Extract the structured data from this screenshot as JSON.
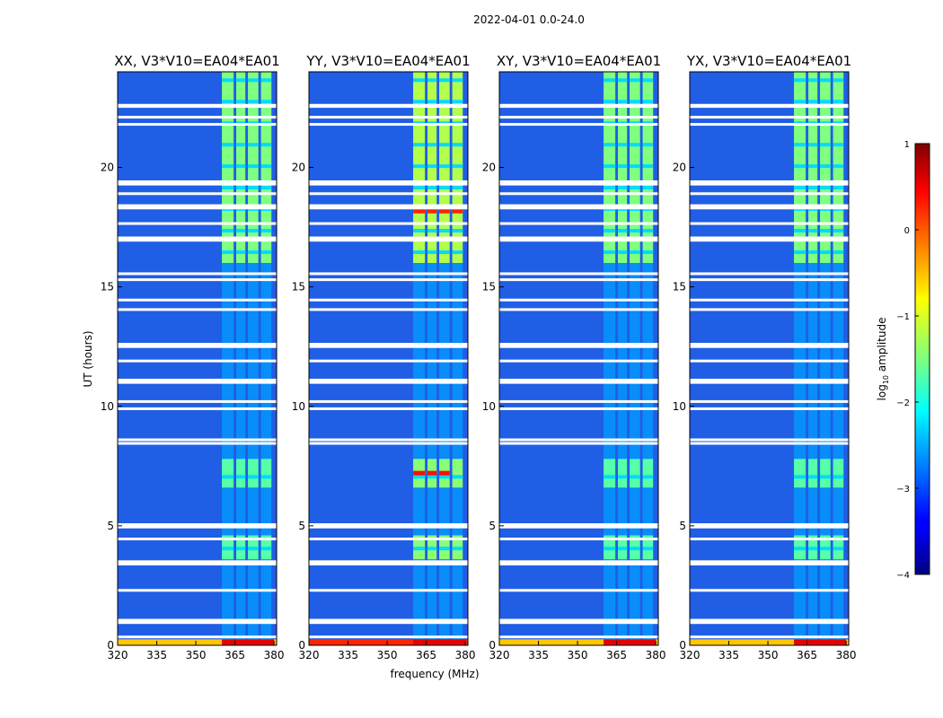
{
  "chart_data": {
    "type": "heatmap",
    "title": "2022-04-01 0.0-24.0",
    "xlabel": "frequency (MHz)",
    "ylabel": "UT (hours)",
    "xlim": [
      320,
      381
    ],
    "ylim": [
      0,
      24
    ],
    "x_ticks": [
      "320",
      "335",
      "350",
      "365",
      "380"
    ],
    "y_ticks": [
      "0",
      "5",
      "10",
      "15",
      "20"
    ],
    "x_tick_values": [
      320,
      335,
      350,
      365,
      380
    ],
    "y_tick_values": [
      0,
      5,
      10,
      15,
      20
    ],
    "panels": [
      {
        "title": "XX, V3*V10=EA04*EA01",
        "polarization": "XX",
        "strong": false
      },
      {
        "title": "YY, V3*V10=EA04*EA01",
        "polarization": "YY",
        "strong": true
      },
      {
        "title": "XY, V3*V10=EA04*EA01",
        "polarization": "XY",
        "strong": false
      },
      {
        "title": "YX, V3*V10=EA04*EA01",
        "polarization": "YX",
        "strong": false
      }
    ],
    "signal_band_mhz": [
      360,
      380
    ],
    "signal_channels_mhz": [
      [
        360.0,
        364.5
      ],
      [
        365.5,
        369.0
      ],
      [
        370.0,
        374.0
      ],
      [
        375.0,
        379.0
      ]
    ],
    "active_periods_hours": [
      [
        16.0,
        24.0
      ],
      [
        6.6,
        7.8
      ],
      [
        3.6,
        4.6
      ]
    ],
    "flagged_hours": [
      0.35,
      0.95,
      1.05,
      2.3,
      3.4,
      3.5,
      4.45,
      4.95,
      5.05,
      8.45,
      8.6,
      9.9,
      10.2,
      11.0,
      11.1,
      11.9,
      12.5,
      12.6,
      14.05,
      14.45,
      15.3,
      15.55,
      16.95,
      17.05,
      17.65,
      18.3,
      18.4,
      18.9,
      19.3,
      19.4,
      21.8,
      22.1,
      22.55,
      22.6
    ],
    "colorbar": {
      "label": "log₁₀ amplitude",
      "label_base": "log",
      "label_sub": "10",
      "label_rest": " amplitude",
      "range": [
        -4,
        1
      ],
      "ticks": [
        "1",
        "0",
        "−1",
        "−2",
        "−3",
        "−4"
      ],
      "tick_values": [
        1,
        0,
        -1,
        -2,
        -3,
        -4
      ],
      "colormap": "jet"
    }
  }
}
